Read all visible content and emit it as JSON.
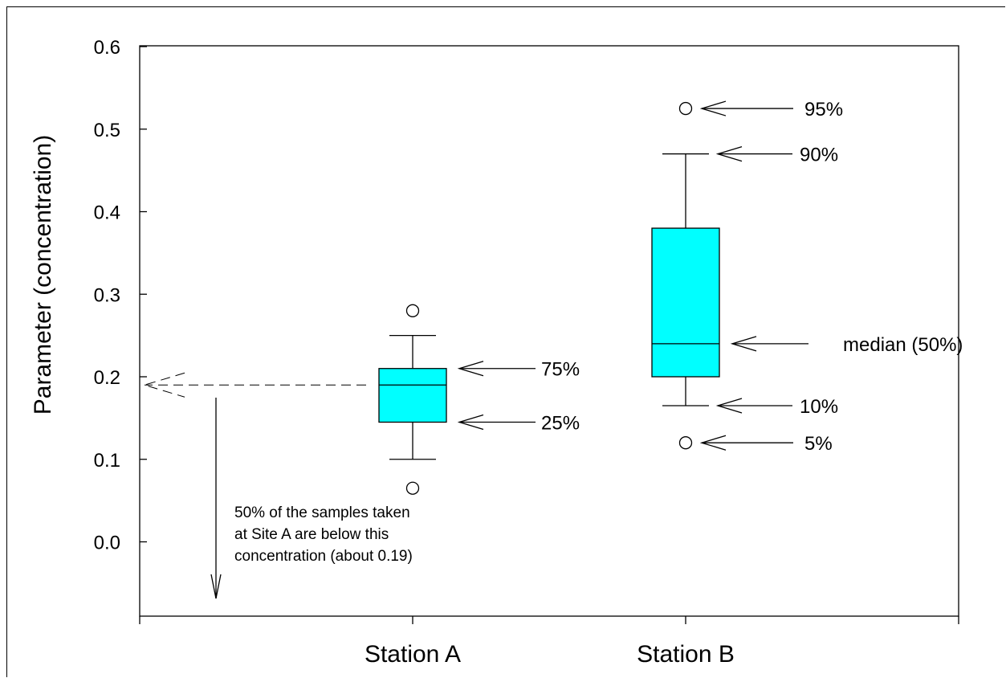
{
  "chart_data": {
    "type": "box",
    "title": "",
    "xlabel": "",
    "ylabel": "Parameter (concentration)",
    "ylim": [
      -0.09,
      0.6
    ],
    "yticks": [
      0.0,
      0.1,
      0.2,
      0.3,
      0.4,
      0.5,
      0.6
    ],
    "ytick_labels": [
      "0.0",
      "0.1",
      "0.2",
      "0.3",
      "0.4",
      "0.5",
      "0.6"
    ],
    "box_color": "#00ffff",
    "categories": [
      "Station A",
      "Station B"
    ],
    "boxes": [
      {
        "category": "Station A",
        "p5": 0.065,
        "p10": 0.1,
        "p25": 0.145,
        "median": 0.19,
        "p75": 0.21,
        "p90": 0.25,
        "p95": 0.28
      },
      {
        "category": "Station B",
        "p5": 0.12,
        "p10": 0.165,
        "p25": 0.2,
        "median": 0.24,
        "p75": 0.38,
        "p90": 0.47,
        "p95": 0.525
      }
    ],
    "annotations": [
      {
        "box": 0,
        "stat": "p75",
        "text": "75%"
      },
      {
        "box": 0,
        "stat": "p25",
        "text": "25%"
      },
      {
        "box": 1,
        "stat": "p95",
        "text": "95%"
      },
      {
        "box": 1,
        "stat": "p90",
        "text": "90%"
      },
      {
        "box": 1,
        "stat": "median",
        "text": "median (50%)"
      },
      {
        "box": 1,
        "stat": "p10",
        "text": "10%"
      },
      {
        "box": 1,
        "stat": "p5",
        "text": "5%"
      }
    ],
    "note": {
      "lines": [
        "50% of the samples taken",
        "at Site A are below this",
        "concentration (about 0.19)"
      ]
    }
  }
}
